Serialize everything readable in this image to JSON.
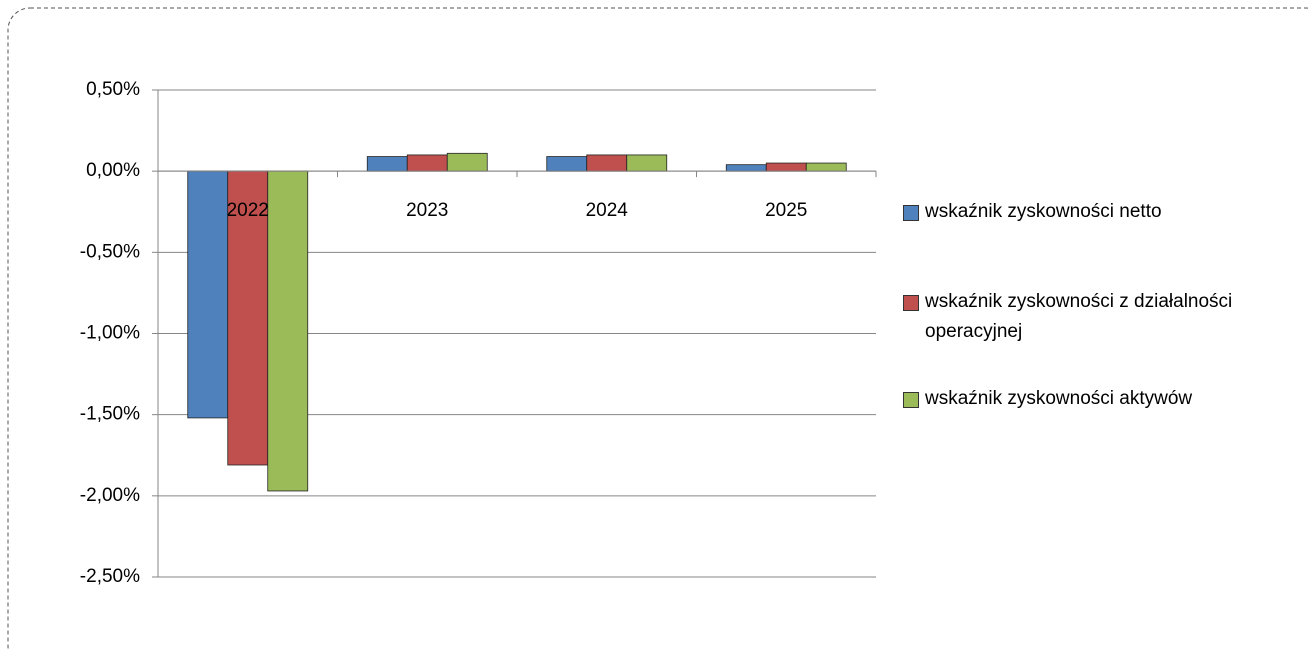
{
  "chart_data": {
    "type": "bar",
    "categories": [
      "2022",
      "2023",
      "2024",
      "2025"
    ],
    "series": [
      {
        "name": "wskaźnik zyskowności netto",
        "color": "#4f81bd",
        "values": [
          -1.52,
          0.09,
          0.09,
          0.04
        ]
      },
      {
        "name": "wskaźnik zyskowności z działalności operacyjnej",
        "color": "#c0504d",
        "values": [
          -1.81,
          0.1,
          0.1,
          0.05
        ]
      },
      {
        "name": "wskaźnik zyskowności aktywów",
        "color": "#9bbb59",
        "values": [
          -1.97,
          0.11,
          0.1,
          0.05
        ]
      }
    ],
    "ylim": [
      -2.5,
      0.5
    ],
    "yticks": [
      {
        "value": 0.5,
        "label": "0,50%"
      },
      {
        "value": 0,
        "label": "0,00%"
      },
      {
        "value": -0.5,
        "label": "-0,50%"
      },
      {
        "value": -1,
        "label": "-1,00%"
      },
      {
        "value": -1.5,
        "label": "-1,50%"
      },
      {
        "value": -2,
        "label": "-2,00%"
      },
      {
        "value": -2.5,
        "label": "-2,50%"
      }
    ],
    "grid": true,
    "legend": "right"
  }
}
